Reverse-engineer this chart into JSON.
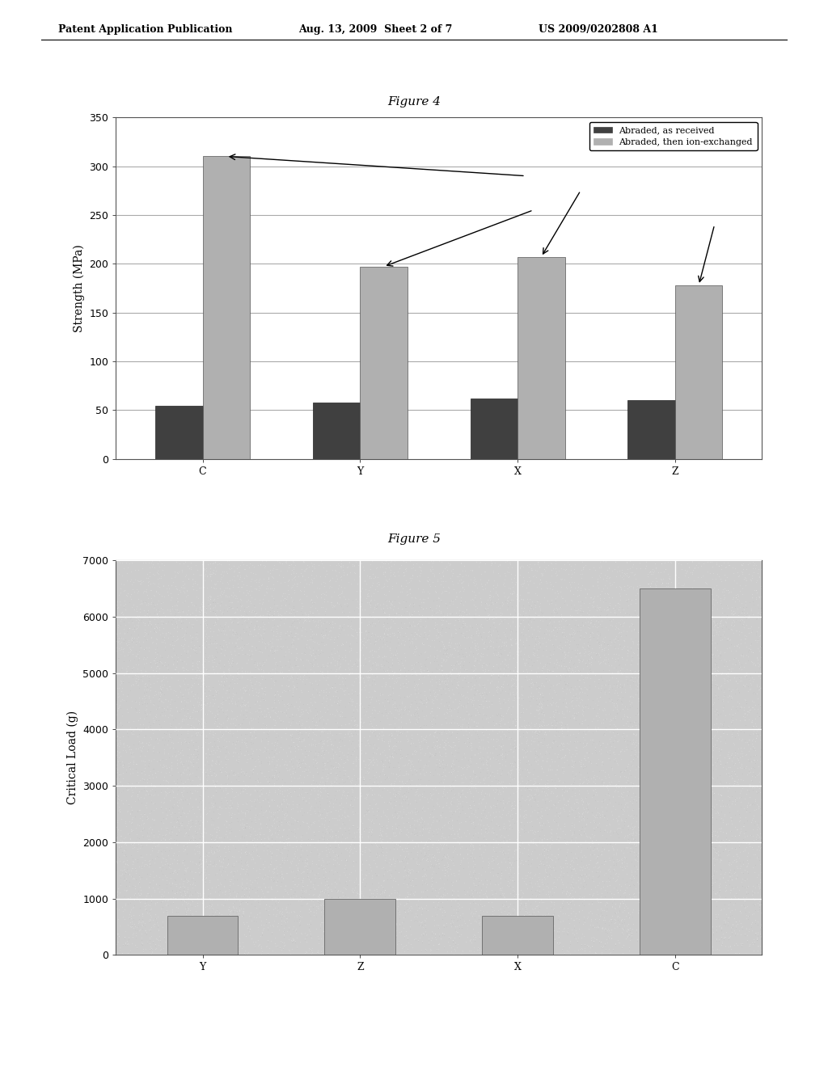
{
  "fig4_title": "Figure 4",
  "fig5_title": "Figure 5",
  "header_left": "Patent Application Publication",
  "header_mid": "Aug. 13, 2009  Sheet 2 of 7",
  "header_right": "US 2009/0202808 A1",
  "fig4_categories": [
    "C",
    "Y",
    "X",
    "Z"
  ],
  "fig4_abraded_as_received": [
    54,
    58,
    62,
    60
  ],
  "fig4_abraded_ion_exchanged": [
    310,
    197,
    207,
    178
  ],
  "fig4_ylabel": "Strength (MPa)",
  "fig4_ylim": [
    0,
    350
  ],
  "fig4_yticks": [
    0,
    50,
    100,
    150,
    200,
    250,
    300,
    350
  ],
  "fig4_bar_color_dark": "#404040",
  "fig4_bar_color_light": "#b0b0b0",
  "fig4_legend1": "Abraded, as received",
  "fig4_legend2": "Abraded, then ion-exchanged",
  "fig5_categories": [
    "Y",
    "Z",
    "X",
    "C"
  ],
  "fig5_values": [
    700,
    1000,
    700,
    6500
  ],
  "fig5_ylabel": "Critical Load (g)",
  "fig5_ylim": [
    0,
    7000
  ],
  "fig5_yticks": [
    0,
    1000,
    2000,
    3000,
    4000,
    5000,
    6000,
    7000
  ],
  "fig5_bar_color": "#b0b0b0",
  "background_color": "#ffffff",
  "plot_bg_fig4": "#ffffff",
  "plot_bg_fig5": "#cccccc",
  "grid_color_fig4": "#aaaaaa",
  "grid_color_fig5": "#ffffff",
  "text_color": "#000000",
  "font_family": "serif",
  "header_fontsize": 9,
  "title_fontsize": 11,
  "axis_label_fontsize": 10,
  "tick_fontsize": 9,
  "legend_fontsize": 8
}
